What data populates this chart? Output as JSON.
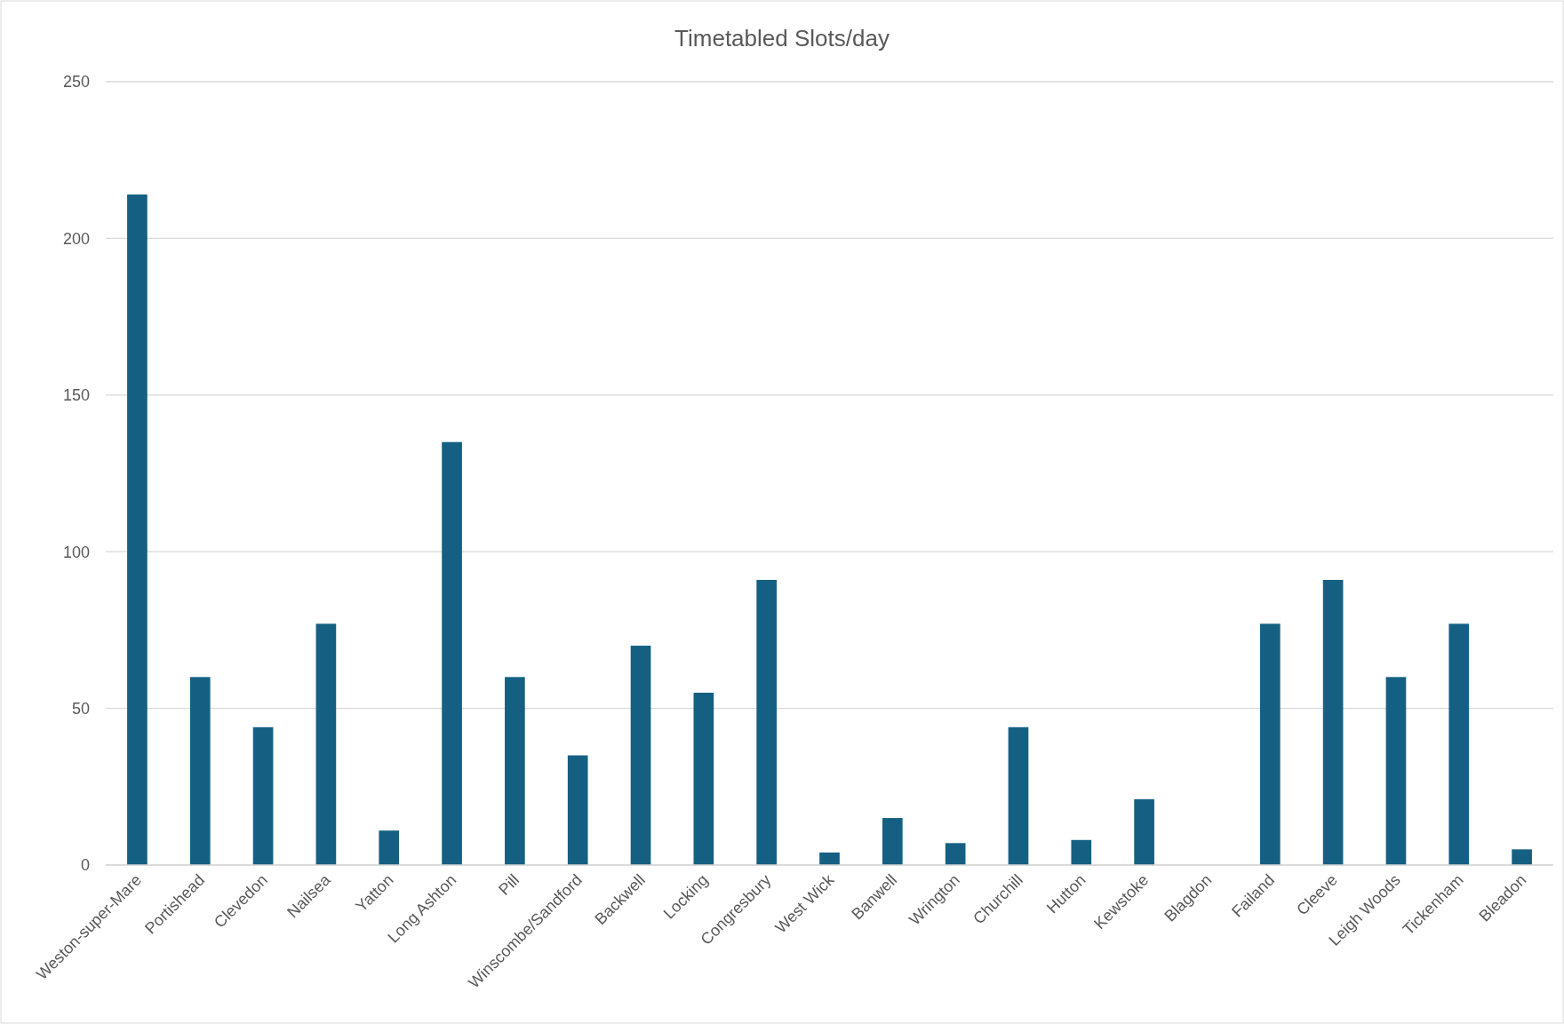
{
  "chart_data": {
    "type": "bar",
    "title": "Timetabled Slots/day",
    "categories": [
      "Weston-super-Mare",
      "Portishead",
      "Clevedon",
      "Nailsea",
      "Yatton",
      "Long Ashton",
      "Pill",
      "Winscombe/Sandford",
      "Backwell",
      "Locking",
      "Congresbury",
      "West Wick",
      "Banwell",
      "Wrington",
      "Churchill",
      "Hutton",
      "Kewstoke",
      "Blagdon",
      "Failand",
      "Cleeve",
      "Leigh Woods",
      "Tickenham",
      "Bleadon"
    ],
    "values": [
      214,
      60,
      44,
      77,
      11,
      135,
      60,
      35,
      70,
      55,
      91,
      4,
      15,
      7,
      44,
      8,
      21,
      0,
      77,
      91,
      60,
      77,
      5
    ],
    "color": "#156082",
    "ylim": [
      0,
      250
    ],
    "yticks": [
      0,
      50,
      100,
      150,
      200,
      250
    ],
    "grid": "y"
  }
}
